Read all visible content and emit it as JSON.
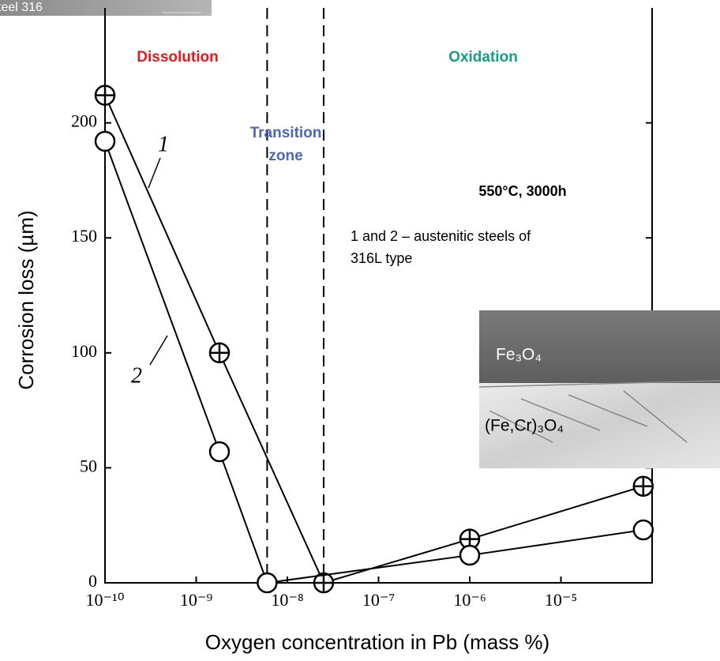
{
  "chart_data": {
    "type": "line",
    "thumbnail_label": "teel 316",
    "x_label": "Oxygen concentration in Pb (mass %)",
    "y_label": "Corrosion loss (µm)",
    "xscale": "log",
    "xlim": [
      1e-10,
      0.0001
    ],
    "ylim": [
      0,
      250
    ],
    "xticks": [
      {
        "value": 1e-10,
        "label": "10⁻¹⁰"
      },
      {
        "value": 1e-09,
        "label": "10⁻⁹"
      },
      {
        "value": 1e-08,
        "label": "10⁻⁸"
      },
      {
        "value": 1e-07,
        "label": "10⁻⁷"
      },
      {
        "value": 1e-06,
        "label": "10⁻⁶"
      },
      {
        "value": 1e-05,
        "label": "10⁻⁵"
      }
    ],
    "yticks": [
      0,
      50,
      100,
      150,
      200
    ],
    "zone_boundaries": [
      6e-09,
      2.5e-08
    ],
    "series": [
      {
        "name": "1",
        "color": "#000000",
        "marker": "crossed-circle",
        "x": [
          1e-10,
          1.8e-09,
          2.5e-08,
          1e-06,
          8e-05
        ],
        "values": [
          212,
          100,
          0,
          19,
          42
        ]
      },
      {
        "name": "2",
        "color": "#000000",
        "marker": "circle",
        "x": [
          1e-10,
          1.8e-09,
          6e-09,
          1e-06,
          8e-05
        ],
        "values": [
          192,
          57,
          0,
          12,
          23
        ]
      }
    ],
    "annotations": {
      "dissolution": "Dissolution",
      "oxidation": "Oxidation",
      "transition_1": "Transition",
      "transition_2": "zone",
      "conditions": "550°C, 3000h",
      "note_1": "1 and 2 – austenitic steels of",
      "note_2": "316L type",
      "inset_top": "Fe₃O₄",
      "inset_bottom": "(Fe,Cr)₃O₄"
    }
  }
}
